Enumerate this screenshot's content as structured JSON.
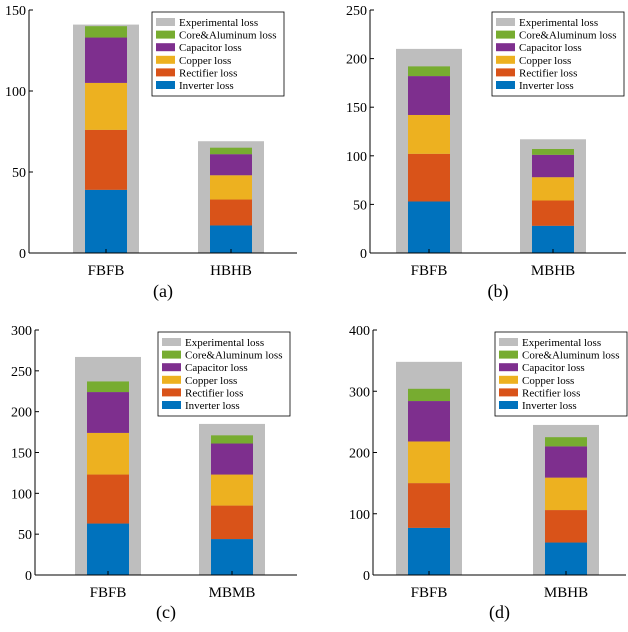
{
  "legend_entries": [
    {
      "key": "experimental",
      "label": "Experimental loss",
      "color": "#BEBEBE"
    },
    {
      "key": "core",
      "label": "Core&Aluminum loss",
      "color": "#77AC30"
    },
    {
      "key": "capacitor",
      "label": "Capacitor loss",
      "color": "#7E2F8E"
    },
    {
      "key": "copper",
      "label": "Copper loss",
      "color": "#EDB120"
    },
    {
      "key": "rectifier",
      "label": "Rectifier loss",
      "color": "#D95319"
    },
    {
      "key": "inverter",
      "label": "Inverter loss",
      "color": "#0072BD"
    }
  ],
  "chart_data": [
    {
      "type": "bar",
      "panel_label": "(a)",
      "ylim": [
        0,
        150
      ],
      "yticks": [
        0,
        50,
        100,
        150
      ],
      "categories": [
        "FBFB",
        "HBHB"
      ],
      "experimental": [
        141,
        69
      ],
      "series": [
        {
          "name": "Inverter loss",
          "key": "inverter",
          "values": [
            39,
            17
          ]
        },
        {
          "name": "Rectifier loss",
          "key": "rectifier",
          "values": [
            37,
            16
          ]
        },
        {
          "name": "Copper loss",
          "key": "copper",
          "values": [
            29,
            15
          ]
        },
        {
          "name": "Capacitor loss",
          "key": "capacitor",
          "values": [
            28,
            13
          ]
        },
        {
          "name": "Core&Aluminum loss",
          "key": "core",
          "values": [
            7,
            4
          ]
        }
      ]
    },
    {
      "type": "bar",
      "panel_label": "(b)",
      "ylim": [
        0,
        250
      ],
      "yticks": [
        0,
        50,
        100,
        150,
        200,
        250
      ],
      "categories": [
        "FBFB",
        "MBHB"
      ],
      "experimental": [
        210,
        117
      ],
      "series": [
        {
          "name": "Inverter loss",
          "key": "inverter",
          "values": [
            53,
            28
          ]
        },
        {
          "name": "Rectifier loss",
          "key": "rectifier",
          "values": [
            49,
            26
          ]
        },
        {
          "name": "Copper loss",
          "key": "copper",
          "values": [
            40,
            24
          ]
        },
        {
          "name": "Capacitor loss",
          "key": "capacitor",
          "values": [
            40,
            23
          ]
        },
        {
          "name": "Core&Aluminum loss",
          "key": "core",
          "values": [
            10,
            6
          ]
        }
      ]
    },
    {
      "type": "bar",
      "panel_label": "(c)",
      "ylim": [
        0,
        300
      ],
      "yticks": [
        0,
        50,
        100,
        150,
        200,
        250,
        300
      ],
      "categories": [
        "FBFB",
        "MBMB"
      ],
      "experimental": [
        267,
        185
      ],
      "series": [
        {
          "name": "Inverter loss",
          "key": "inverter",
          "values": [
            63,
            44
          ]
        },
        {
          "name": "Rectifier loss",
          "key": "rectifier",
          "values": [
            60,
            41
          ]
        },
        {
          "name": "Copper loss",
          "key": "copper",
          "values": [
            51,
            38
          ]
        },
        {
          "name": "Capacitor loss",
          "key": "capacitor",
          "values": [
            50,
            38
          ]
        },
        {
          "name": "Core&Aluminum loss",
          "key": "core",
          "values": [
            13,
            10
          ]
        }
      ]
    },
    {
      "type": "bar",
      "panel_label": "(d)",
      "ylim": [
        0,
        400
      ],
      "yticks": [
        0,
        100,
        200,
        300,
        400
      ],
      "categories": [
        "FBFB",
        "MBHB"
      ],
      "experimental": [
        348,
        245
      ],
      "series": [
        {
          "name": "Inverter loss",
          "key": "inverter",
          "values": [
            77,
            53
          ]
        },
        {
          "name": "Rectifier loss",
          "key": "rectifier",
          "values": [
            73,
            53
          ]
        },
        {
          "name": "Copper loss",
          "key": "copper",
          "values": [
            68,
            53
          ]
        },
        {
          "name": "Capacitor loss",
          "key": "capacitor",
          "values": [
            66,
            51
          ]
        },
        {
          "name": "Core&Aluminum loss",
          "key": "core",
          "values": [
            20,
            15
          ]
        }
      ]
    }
  ]
}
